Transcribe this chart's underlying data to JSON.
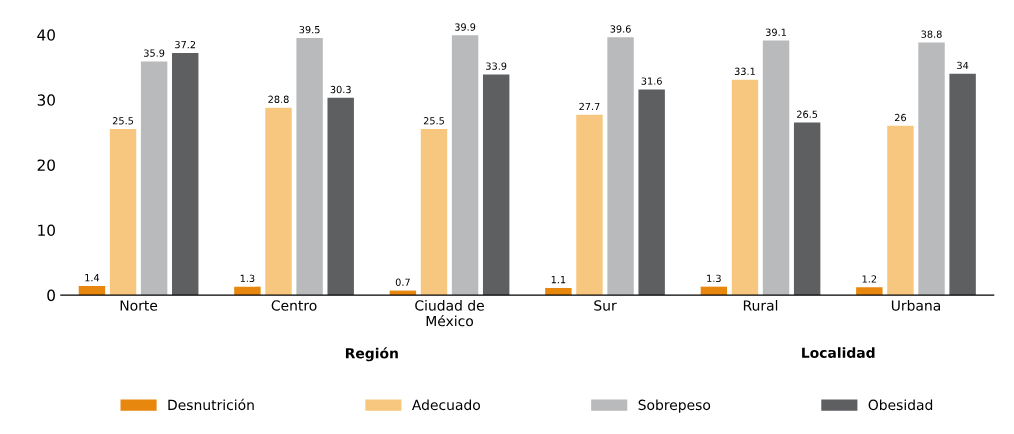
{
  "chart_data": {
    "type": "bar",
    "categories": [
      "Norte",
      "Centro",
      "Ciudad de\nMéxico",
      "Sur",
      "Rural",
      "Urbana"
    ],
    "series": [
      {
        "name": "Desnutrición",
        "color": "#e8870e",
        "values": [
          1.4,
          1.3,
          0.7,
          1.1,
          1.3,
          1.2
        ]
      },
      {
        "name": "Adecuado",
        "color": "#f8c77f",
        "values": [
          25.5,
          28.8,
          25.5,
          27.7,
          33.1,
          26
        ]
      },
      {
        "name": "Sobrepeso",
        "color": "#b9babc",
        "values": [
          35.9,
          39.5,
          39.9,
          39.6,
          39.1,
          38.8
        ]
      },
      {
        "name": "Obesidad",
        "color": "#5e5f61",
        "values": [
          37.2,
          30.3,
          33.9,
          31.6,
          26.5,
          34
        ]
      }
    ],
    "ylim": [
      0,
      40
    ],
    "yticks": [
      0,
      10,
      20,
      30,
      40
    ],
    "annotations": [
      "Región",
      "Localidad"
    ],
    "data_labels": true,
    "grid": false,
    "legend": "bottom"
  }
}
